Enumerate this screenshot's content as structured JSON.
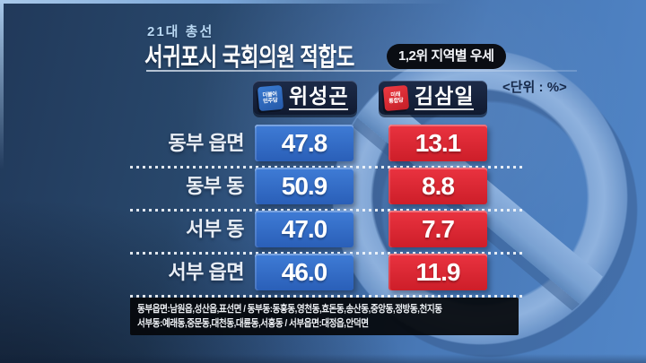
{
  "header": {
    "pretitle": "21대 총선",
    "title": "서귀포시 국회의원 적합도",
    "badge": "1,2위 지역별 우세",
    "unit_label": "<단위 : %>"
  },
  "candidates": [
    {
      "name": "위성곤",
      "party": "더불어민주당",
      "logo_text": "더불어\n민주당",
      "color": "#2f6cc4"
    },
    {
      "name": "김삼일",
      "party": "미래통합당",
      "logo_text": "미래\n통합당",
      "color": "#e0222e"
    }
  ],
  "rows": [
    {
      "region": "동부 읍면",
      "value1": "47.8",
      "value2": "13.1"
    },
    {
      "region": "동부 동",
      "value1": "50.9",
      "value2": "8.8"
    },
    {
      "region": "서부 동",
      "value1": "47.0",
      "value2": "7.7"
    },
    {
      "region": "서부 읍면",
      "value1": "46.0",
      "value2": "11.9"
    }
  ],
  "footer": {
    "line1": "동부읍면:남원읍,성산읍,표선면 / 동부동:동홍동,영천동,효돈동,송산동,중앙동,정방동,천지동",
    "line2": "서부동:예래동,중문동,대천동,대륜동,서홍동 / 서부읍면:대정읍,안덕면"
  },
  "chart_data": {
    "type": "table",
    "title": "21대 총선 서귀포시 국회의원 적합도 — 1,2위 지역별 우세",
    "unit": "%",
    "categories": [
      "동부 읍면",
      "동부 동",
      "서부 동",
      "서부 읍면"
    ],
    "series": [
      {
        "name": "위성곤",
        "party": "더불어민주당",
        "color": "#2f6cc4",
        "values": [
          47.8,
          50.9,
          47.0,
          46.0
        ]
      },
      {
        "name": "김삼일",
        "party": "미래통합당",
        "color": "#e0222e",
        "values": [
          13.1,
          8.8,
          7.7,
          11.9
        ]
      }
    ]
  },
  "colors": {
    "candidate1_box": "#2f6cc4",
    "candidate2_box": "#e0222e",
    "candidate_header_box": "#17233c",
    "badge_bg": "#0a0d13",
    "footer_bg": "#05070b",
    "background_left": "#22405f",
    "background_right": "#5186c8",
    "stamp_ring": "#86abd9"
  }
}
